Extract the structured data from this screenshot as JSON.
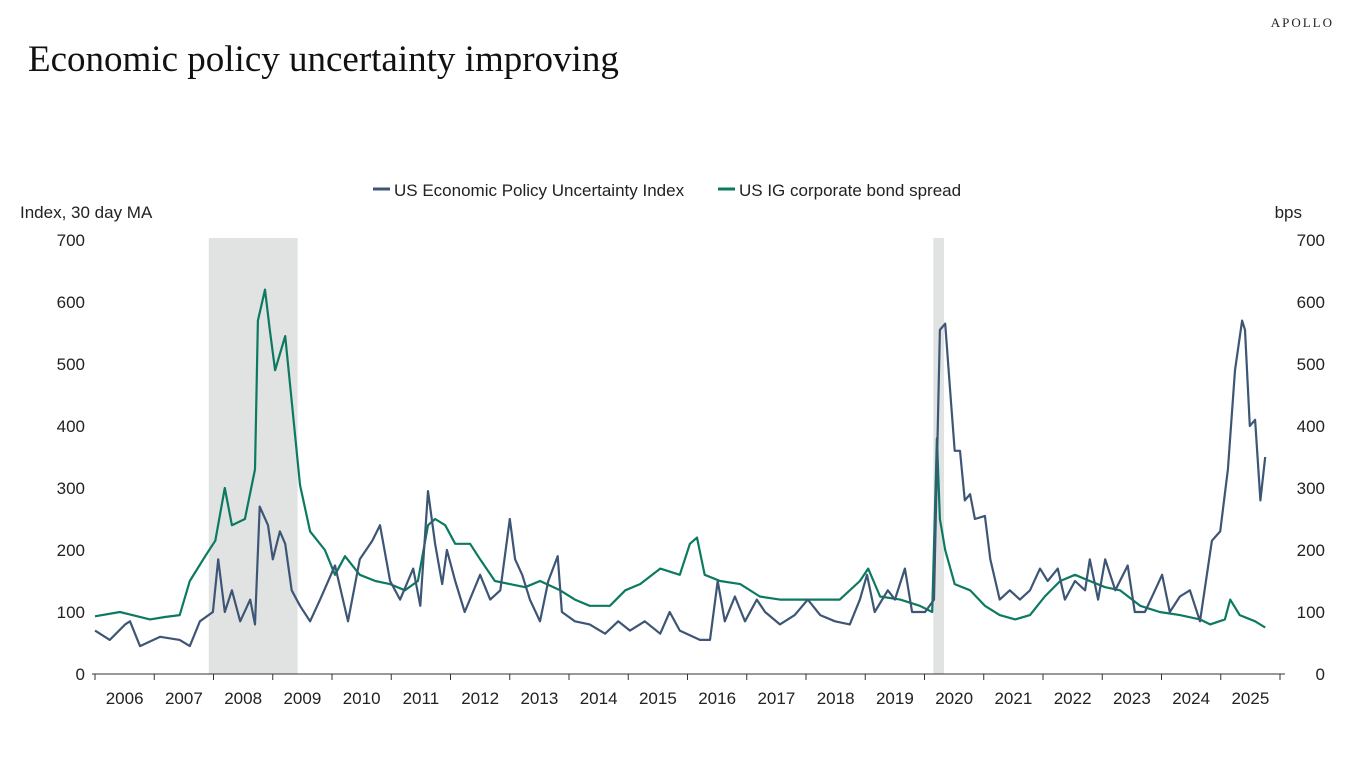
{
  "brand": "APOLLO",
  "title": "Economic policy uncertainty improving",
  "chart_data": {
    "type": "line",
    "title": "Economic policy uncertainty improving",
    "ylabel_left": "Index, 30 day MA",
    "ylabel_right": "bps",
    "ylim": [
      0,
      700
    ],
    "yticks": [
      "0",
      "100",
      "200",
      "300",
      "400",
      "500",
      "600",
      "700"
    ],
    "xlim": [
      2006,
      2026
    ],
    "xticks": [
      "2006",
      "2007",
      "2008",
      "2009",
      "2010",
      "2011",
      "2012",
      "2013",
      "2014",
      "2015",
      "2016",
      "2017",
      "2018",
      "2019",
      "2020",
      "2021",
      "2022",
      "2023",
      "2024",
      "2025"
    ],
    "legend_position": "top",
    "grid": false,
    "recession_shading": [
      [
        2007.92,
        2009.42
      ],
      [
        2020.15,
        2020.33
      ]
    ],
    "series": [
      {
        "name": "US Economic Policy Uncertainty Index",
        "color": "#3d5675",
        "axis": "left",
        "points": [
          [
            2006.0,
            70
          ],
          [
            2006.25,
            55
          ],
          [
            2006.51,
            80
          ],
          [
            2006.59,
            85
          ],
          [
            2006.76,
            45
          ],
          [
            2007.1,
            60
          ],
          [
            2007.43,
            55
          ],
          [
            2007.6,
            45
          ],
          [
            2007.77,
            85
          ],
          [
            2007.99,
            100
          ],
          [
            2008.08,
            185
          ],
          [
            2008.19,
            100
          ],
          [
            2008.31,
            135
          ],
          [
            2008.45,
            85
          ],
          [
            2008.62,
            120
          ],
          [
            2008.7,
            80
          ],
          [
            2008.78,
            270
          ],
          [
            2008.92,
            240
          ],
          [
            2009.0,
            185
          ],
          [
            2009.12,
            230
          ],
          [
            2009.21,
            210
          ],
          [
            2009.32,
            135
          ],
          [
            2009.46,
            110
          ],
          [
            2009.63,
            85
          ],
          [
            2009.8,
            120
          ],
          [
            2010.05,
            175
          ],
          [
            2010.27,
            85
          ],
          [
            2010.47,
            185
          ],
          [
            2010.68,
            215
          ],
          [
            2010.81,
            240
          ],
          [
            2010.98,
            150
          ],
          [
            2011.15,
            120
          ],
          [
            2011.37,
            170
          ],
          [
            2011.49,
            110
          ],
          [
            2011.62,
            295
          ],
          [
            2011.74,
            210
          ],
          [
            2011.86,
            145
          ],
          [
            2011.94,
            200
          ],
          [
            2012.08,
            150
          ],
          [
            2012.24,
            100
          ],
          [
            2012.5,
            160
          ],
          [
            2012.67,
            120
          ],
          [
            2012.84,
            135
          ],
          [
            2013.0,
            250
          ],
          [
            2013.09,
            185
          ],
          [
            2013.21,
            160
          ],
          [
            2013.34,
            120
          ],
          [
            2013.51,
            85
          ],
          [
            2013.65,
            150
          ],
          [
            2013.81,
            190
          ],
          [
            2013.88,
            100
          ],
          [
            2014.1,
            85
          ],
          [
            2014.35,
            80
          ],
          [
            2014.61,
            65
          ],
          [
            2014.83,
            85
          ],
          [
            2015.03,
            70
          ],
          [
            2015.28,
            85
          ],
          [
            2015.54,
            65
          ],
          [
            2015.7,
            100
          ],
          [
            2015.87,
            70
          ],
          [
            2016.21,
            55
          ],
          [
            2016.38,
            55
          ],
          [
            2016.51,
            150
          ],
          [
            2016.63,
            85
          ],
          [
            2016.8,
            125
          ],
          [
            2016.97,
            85
          ],
          [
            2017.17,
            120
          ],
          [
            2017.31,
            100
          ],
          [
            2017.56,
            80
          ],
          [
            2017.81,
            95
          ],
          [
            2018.03,
            120
          ],
          [
            2018.24,
            95
          ],
          [
            2018.49,
            85
          ],
          [
            2018.74,
            80
          ],
          [
            2018.91,
            120
          ],
          [
            2019.03,
            160
          ],
          [
            2019.16,
            100
          ],
          [
            2019.38,
            135
          ],
          [
            2019.5,
            120
          ],
          [
            2019.67,
            170
          ],
          [
            2019.79,
            100
          ],
          [
            2020.01,
            100
          ],
          [
            2020.16,
            120
          ],
          [
            2020.26,
            555
          ],
          [
            2020.35,
            565
          ],
          [
            2020.43,
            460
          ],
          [
            2020.51,
            360
          ],
          [
            2020.6,
            360
          ],
          [
            2020.68,
            280
          ],
          [
            2020.77,
            290
          ],
          [
            2020.85,
            250
          ],
          [
            2021.02,
            255
          ],
          [
            2021.11,
            185
          ],
          [
            2021.27,
            120
          ],
          [
            2021.44,
            135
          ],
          [
            2021.61,
            120
          ],
          [
            2021.78,
            135
          ],
          [
            2021.95,
            170
          ],
          [
            2022.08,
            150
          ],
          [
            2022.25,
            170
          ],
          [
            2022.37,
            120
          ],
          [
            2022.54,
            150
          ],
          [
            2022.71,
            135
          ],
          [
            2022.79,
            185
          ],
          [
            2022.93,
            120
          ],
          [
            2023.05,
            185
          ],
          [
            2023.22,
            135
          ],
          [
            2023.43,
            175
          ],
          [
            2023.55,
            100
          ],
          [
            2023.72,
            100
          ],
          [
            2023.89,
            135
          ],
          [
            2024.01,
            160
          ],
          [
            2024.14,
            100
          ],
          [
            2024.31,
            125
          ],
          [
            2024.48,
            135
          ],
          [
            2024.65,
            85
          ],
          [
            2024.85,
            215
          ],
          [
            2024.99,
            230
          ],
          [
            2025.12,
            330
          ],
          [
            2025.24,
            490
          ],
          [
            2025.36,
            570
          ],
          [
            2025.41,
            555
          ],
          [
            2025.49,
            400
          ],
          [
            2025.58,
            410
          ],
          [
            2025.67,
            280
          ],
          [
            2025.75,
            350
          ]
        ]
      },
      {
        "name": "US IG corporate bond spread",
        "color": "#0b7a60",
        "axis": "right",
        "points": [
          [
            2006.0,
            93
          ],
          [
            2006.42,
            100
          ],
          [
            2006.93,
            88
          ],
          [
            2007.18,
            92
          ],
          [
            2007.43,
            95
          ],
          [
            2007.6,
            150
          ],
          [
            2007.86,
            190
          ],
          [
            2008.03,
            215
          ],
          [
            2008.19,
            300
          ],
          [
            2008.31,
            240
          ],
          [
            2008.53,
            250
          ],
          [
            2008.7,
            330
          ],
          [
            2008.75,
            570
          ],
          [
            2008.87,
            620
          ],
          [
            2008.95,
            555
          ],
          [
            2009.04,
            490
          ],
          [
            2009.21,
            545
          ],
          [
            2009.32,
            440
          ],
          [
            2009.46,
            305
          ],
          [
            2009.63,
            230
          ],
          [
            2009.88,
            200
          ],
          [
            2010.05,
            160
          ],
          [
            2010.22,
            190
          ],
          [
            2010.47,
            160
          ],
          [
            2010.73,
            150
          ],
          [
            2010.98,
            145
          ],
          [
            2011.23,
            135
          ],
          [
            2011.45,
            150
          ],
          [
            2011.62,
            240
          ],
          [
            2011.74,
            250
          ],
          [
            2011.91,
            240
          ],
          [
            2012.08,
            210
          ],
          [
            2012.33,
            210
          ],
          [
            2012.5,
            185
          ],
          [
            2012.75,
            150
          ],
          [
            2013.0,
            145
          ],
          [
            2013.26,
            140
          ],
          [
            2013.51,
            150
          ],
          [
            2013.85,
            135
          ],
          [
            2014.1,
            120
          ],
          [
            2014.35,
            110
          ],
          [
            2014.69,
            110
          ],
          [
            2014.95,
            135
          ],
          [
            2015.2,
            145
          ],
          [
            2015.54,
            170
          ],
          [
            2015.87,
            160
          ],
          [
            2016.04,
            210
          ],
          [
            2016.16,
            220
          ],
          [
            2016.29,
            160
          ],
          [
            2016.55,
            150
          ],
          [
            2016.89,
            145
          ],
          [
            2017.22,
            125
          ],
          [
            2017.56,
            120
          ],
          [
            2017.9,
            120
          ],
          [
            2018.24,
            120
          ],
          [
            2018.57,
            120
          ],
          [
            2018.91,
            150
          ],
          [
            2019.05,
            170
          ],
          [
            2019.25,
            125
          ],
          [
            2019.59,
            120
          ],
          [
            2019.92,
            110
          ],
          [
            2020.13,
            100
          ],
          [
            2020.21,
            380
          ],
          [
            2020.26,
            250
          ],
          [
            2020.35,
            200
          ],
          [
            2020.51,
            145
          ],
          [
            2020.77,
            135
          ],
          [
            2021.02,
            110
          ],
          [
            2021.27,
            95
          ],
          [
            2021.53,
            88
          ],
          [
            2021.78,
            95
          ],
          [
            2022.03,
            125
          ],
          [
            2022.29,
            150
          ],
          [
            2022.54,
            160
          ],
          [
            2022.79,
            150
          ],
          [
            2023.05,
            140
          ],
          [
            2023.3,
            135
          ],
          [
            2023.64,
            110
          ],
          [
            2023.97,
            100
          ],
          [
            2024.31,
            95
          ],
          [
            2024.65,
            88
          ],
          [
            2024.82,
            80
          ],
          [
            2025.07,
            88
          ],
          [
            2025.16,
            120
          ],
          [
            2025.32,
            95
          ],
          [
            2025.58,
            85
          ],
          [
            2025.75,
            75
          ]
        ]
      }
    ]
  }
}
